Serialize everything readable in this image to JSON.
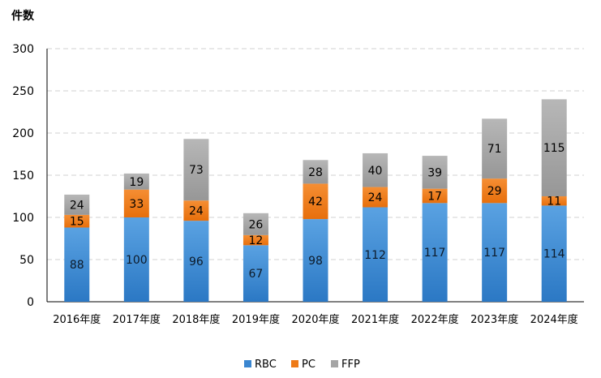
{
  "chart_data": {
    "type": "bar",
    "stacked": true,
    "title": "",
    "ylabel": "件数",
    "xlabel": "",
    "ylim": [
      0,
      300
    ],
    "yticks": [
      0,
      50,
      100,
      150,
      200,
      250,
      300
    ],
    "grid": true,
    "legend_position": "bottom",
    "categories": [
      "2016年度",
      "2017年度",
      "2018年度",
      "2019年度",
      "2020年度",
      "2021年度",
      "2022年度",
      "2023年度",
      "2024年度"
    ],
    "series": [
      {
        "name": "RBC",
        "color": "#3a86d0",
        "values": [
          88,
          100,
          96,
          67,
          98,
          112,
          117,
          117,
          114
        ]
      },
      {
        "name": "PC",
        "color": "#ee7a17",
        "values": [
          15,
          33,
          24,
          12,
          42,
          24,
          17,
          29,
          11
        ]
      },
      {
        "name": "FFP",
        "color": "#a5a5a5",
        "values": [
          24,
          19,
          73,
          26,
          28,
          40,
          39,
          71,
          115
        ]
      }
    ]
  }
}
